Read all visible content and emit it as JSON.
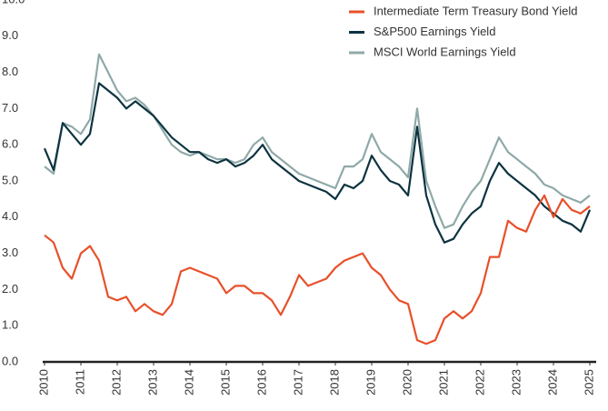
{
  "chart_data": {
    "type": "line",
    "x": [
      2010,
      2010.25,
      2010.5,
      2010.75,
      2011,
      2011.25,
      2011.5,
      2011.75,
      2012,
      2012.25,
      2012.5,
      2012.75,
      2013,
      2013.25,
      2013.5,
      2013.75,
      2014,
      2014.25,
      2014.5,
      2014.75,
      2015,
      2015.25,
      2015.5,
      2015.75,
      2016,
      2016.25,
      2016.5,
      2016.75,
      2017,
      2017.25,
      2017.5,
      2017.75,
      2018,
      2018.25,
      2018.5,
      2018.75,
      2019,
      2019.25,
      2019.5,
      2019.75,
      2020,
      2020.25,
      2020.5,
      2020.75,
      2021,
      2021.25,
      2021.5,
      2021.75,
      2022,
      2022.25,
      2022.5,
      2022.75,
      2023,
      2023.25,
      2023.5,
      2023.75,
      2024,
      2024.25,
      2024.5,
      2024.75,
      2025
    ],
    "series": [
      {
        "name": "Intermediate Term Treasury Bond Yield",
        "color": "#e8502a",
        "values": [
          3.5,
          3.3,
          2.6,
          2.3,
          3.0,
          3.2,
          2.8,
          1.8,
          1.7,
          1.8,
          1.4,
          1.6,
          1.4,
          1.3,
          1.6,
          2.5,
          2.6,
          2.5,
          2.4,
          2.3,
          1.9,
          2.1,
          2.1,
          1.9,
          1.9,
          1.7,
          1.3,
          1.8,
          2.4,
          2.1,
          2.2,
          2.3,
          2.6,
          2.8,
          2.9,
          3.0,
          2.6,
          2.4,
          2.0,
          1.7,
          1.6,
          0.6,
          0.5,
          0.6,
          1.2,
          1.4,
          1.2,
          1.4,
          1.9,
          2.9,
          2.9,
          3.9,
          3.7,
          3.6,
          4.2,
          4.6,
          4.0,
          4.5,
          4.2,
          4.1,
          4.3
        ]
      },
      {
        "name": "S&P500 Earnings Yield",
        "color": "#0d3340",
        "values": [
          5.9,
          5.3,
          6.6,
          6.3,
          6.0,
          6.3,
          7.7,
          7.5,
          7.3,
          7.0,
          7.2,
          7.0,
          6.8,
          6.5,
          6.2,
          6.0,
          5.8,
          5.8,
          5.6,
          5.5,
          5.6,
          5.4,
          5.5,
          5.7,
          6.0,
          5.6,
          5.4,
          5.2,
          5.0,
          4.9,
          4.8,
          4.7,
          4.5,
          4.9,
          4.8,
          5.0,
          5.7,
          5.3,
          5.0,
          4.9,
          4.6,
          6.5,
          4.6,
          3.8,
          3.3,
          3.4,
          3.8,
          4.1,
          4.3,
          5.0,
          5.5,
          5.2,
          5.0,
          4.8,
          4.6,
          4.3,
          4.1,
          3.9,
          3.8,
          3.6,
          4.2
        ]
      },
      {
        "name": "MSCI World Earnings Yield",
        "color": "#8fa9a8",
        "values": [
          5.4,
          5.2,
          6.6,
          6.5,
          6.3,
          6.7,
          8.5,
          8.0,
          7.5,
          7.2,
          7.3,
          7.1,
          6.8,
          6.4,
          6.0,
          5.8,
          5.7,
          5.8,
          5.7,
          5.6,
          5.6,
          5.5,
          5.6,
          6.0,
          6.2,
          5.8,
          5.6,
          5.4,
          5.2,
          5.1,
          5.0,
          4.9,
          4.8,
          5.4,
          5.4,
          5.6,
          6.3,
          5.8,
          5.6,
          5.4,
          5.1,
          7.0,
          5.0,
          4.3,
          3.7,
          3.8,
          4.3,
          4.7,
          5.0,
          5.6,
          6.2,
          5.8,
          5.6,
          5.4,
          5.2,
          4.9,
          4.8,
          4.6,
          4.5,
          4.4,
          4.6
        ]
      }
    ],
    "xlim": [
      2010,
      2025
    ],
    "xticks": [
      2010,
      2011,
      2012,
      2013,
      2014,
      2015,
      2016,
      2017,
      2018,
      2019,
      2020,
      2021,
      2022,
      2023,
      2024,
      2025
    ],
    "ylim": [
      0,
      10
    ],
    "yticks": [
      {
        "value": 0,
        "label": "0.0"
      },
      {
        "value": 1,
        "label": "1.0"
      },
      {
        "value": 2,
        "label": "2.0"
      },
      {
        "value": 3,
        "label": "3.0"
      },
      {
        "value": 4,
        "label": "4.0"
      },
      {
        "value": 5,
        "label": "5.0"
      },
      {
        "value": 6,
        "label": "6.0"
      },
      {
        "value": 7,
        "label": "7.0"
      },
      {
        "value": 8,
        "label": "8.0"
      },
      {
        "value": 9,
        "label": "9.0"
      },
      {
        "value": 10,
        "label": "10.0"
      }
    ],
    "legend": "upper right"
  }
}
